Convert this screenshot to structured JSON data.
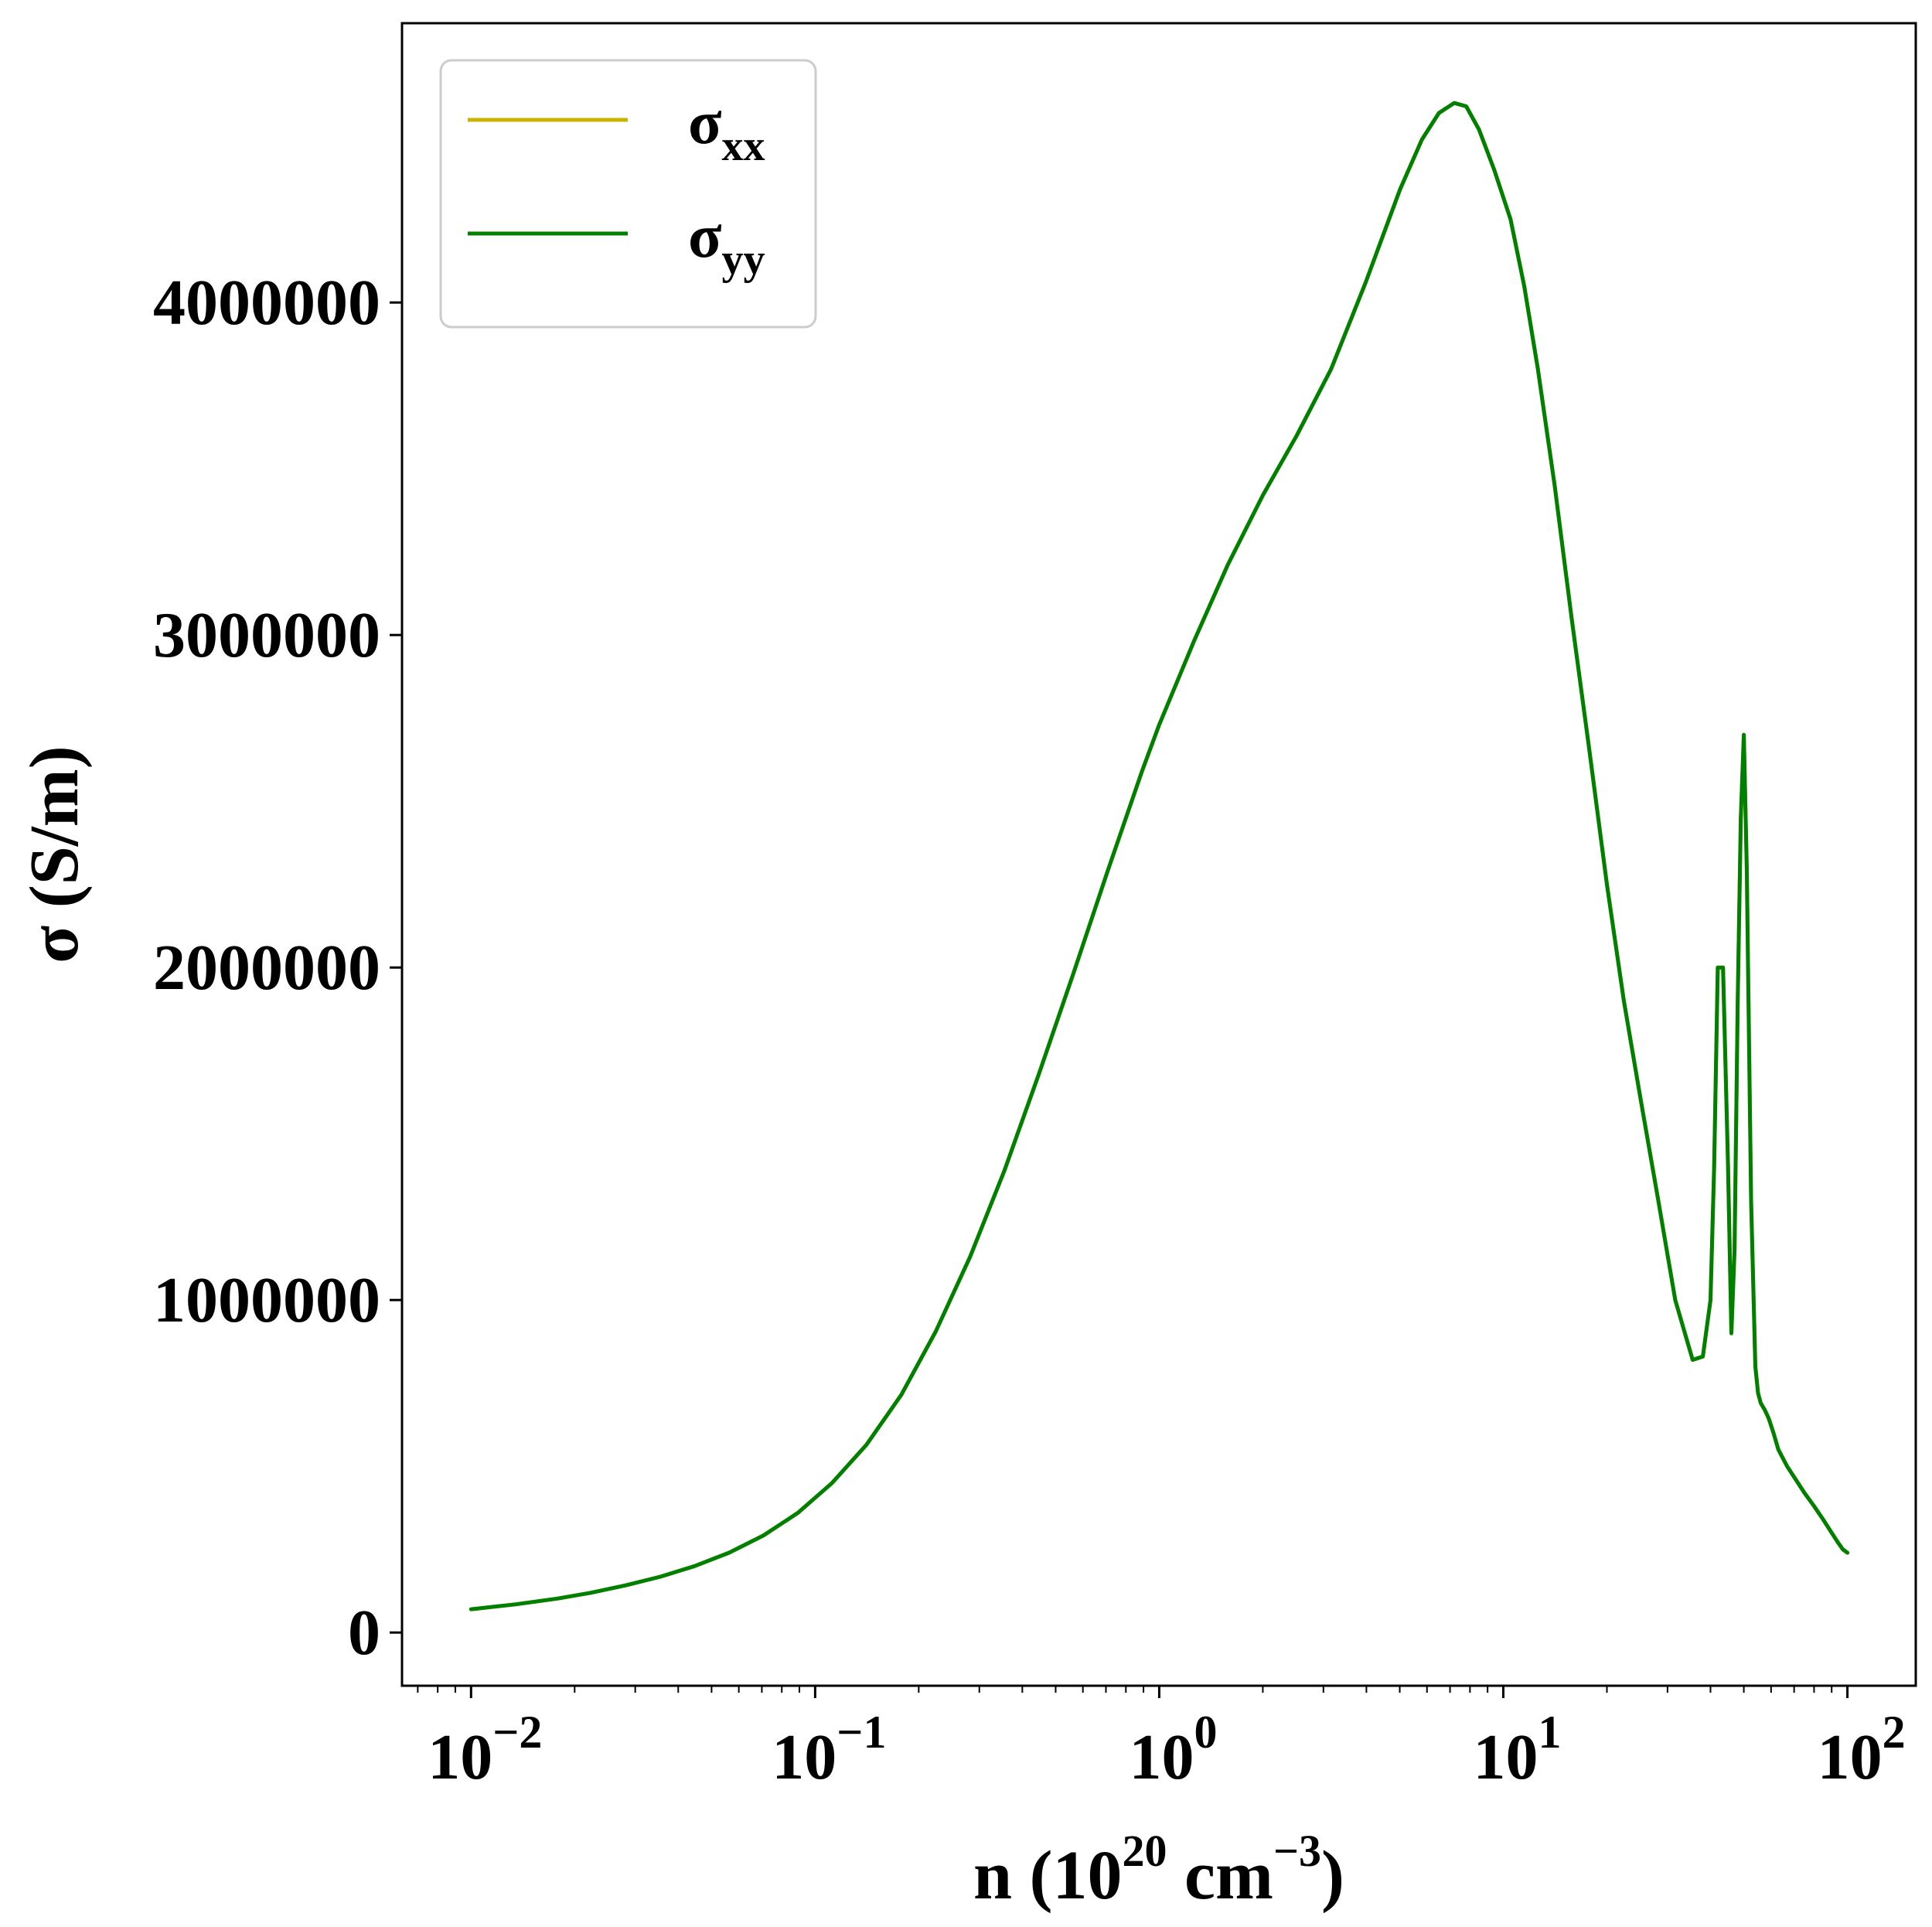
{
  "chart_data": {
    "type": "line",
    "xscale": "log",
    "xlim": [
      0.0063,
      158
    ],
    "ylim": [
      -160000,
      4840000
    ],
    "xlabel": {
      "base": "n (10",
      "exp1": "20",
      "mid": " cm",
      "exp2": "−3",
      "end": ")"
    },
    "ylabel": "σ (S/m)",
    "xticks": [
      {
        "value": 0.01,
        "base": "10",
        "exp": "−2"
      },
      {
        "value": 0.1,
        "base": "10",
        "exp": "−1"
      },
      {
        "value": 1,
        "base": "10",
        "exp": "0"
      },
      {
        "value": 10,
        "base": "10",
        "exp": "1"
      },
      {
        "value": 100,
        "base": "10",
        "exp": "2"
      }
    ],
    "yticks": [
      {
        "value": 0,
        "label": "0"
      },
      {
        "value": 1000000,
        "label": "1000000"
      },
      {
        "value": 2000000,
        "label": "2000000"
      },
      {
        "value": 3000000,
        "label": "3000000"
      },
      {
        "value": 4000000,
        "label": "4000000"
      }
    ],
    "legend": {
      "position": "top-left",
      "entries": [
        {
          "symbol": "σ",
          "sub": "xx",
          "color": "#c8b400"
        },
        {
          "symbol": "σ",
          "sub": "yy",
          "color": "#008000"
        }
      ]
    },
    "series": [
      {
        "name": "σxx",
        "color": "#c8b400",
        "x": [
          0.01,
          0.0135,
          0.0178,
          0.0224,
          0.0282,
          0.0355,
          0.0447,
          0.0562,
          0.0708,
          0.0891,
          0.112,
          0.141,
          0.178,
          0.224,
          0.282,
          0.355,
          0.447,
          0.562,
          0.708,
          0.891,
          1.0,
          1.26,
          1.58,
          2.0,
          2.51,
          3.16,
          3.98,
          5.01,
          5.8,
          6.5,
          7.2,
          7.8,
          8.5,
          9.4,
          10.5,
          11.5,
          12.6,
          14.1,
          15.8,
          17.8,
          20.0,
          22.4,
          25.1,
          28.2,
          31.6,
          35.5,
          38.0,
          40.0,
          41.0,
          42.0,
          43.5,
          45.0,
          46.0,
          47.0,
          48.0,
          49.0,
          50.0,
          51.0,
          52.5,
          54.0,
          55.0,
          56.0,
          57.5,
          59.0,
          61.0,
          63.0,
          66.8,
          70.8,
          75.0,
          80.0,
          85.0,
          90.0,
          94.0,
          97.0,
          100.0
        ],
        "y": [
          70000,
          85000,
          102000,
          120000,
          142000,
          168000,
          200000,
          240000,
          292000,
          360000,
          450000,
          565000,
          715000,
          905000,
          1130000,
          1390000,
          1680000,
          1980000,
          2290000,
          2590000,
          2730000,
          2980000,
          3210000,
          3420000,
          3600000,
          3800000,
          4060000,
          4340000,
          4490000,
          4570000,
          4600000,
          4590000,
          4520000,
          4400000,
          4250000,
          4050000,
          3800000,
          3450000,
          3050000,
          2650000,
          2250000,
          1900000,
          1600000,
          1300000,
          1000000,
          820000,
          830000,
          1000000,
          1400000,
          2000000,
          2000000,
          1400000,
          900000,
          1150000,
          1900000,
          2450000,
          2700000,
          2300000,
          1300000,
          800000,
          720000,
          690000,
          670000,
          645000,
          600000,
          550000,
          500000,
          460000,
          420000,
          380000,
          340000,
          300000,
          270000,
          250000,
          240000
        ]
      },
      {
        "name": "σyy",
        "color": "#008000",
        "x": [
          0.01,
          0.0135,
          0.0178,
          0.0224,
          0.0282,
          0.0355,
          0.0447,
          0.0562,
          0.0708,
          0.0891,
          0.112,
          0.141,
          0.178,
          0.224,
          0.282,
          0.355,
          0.447,
          0.562,
          0.708,
          0.891,
          1.0,
          1.26,
          1.58,
          2.0,
          2.51,
          3.16,
          3.98,
          5.01,
          5.8,
          6.5,
          7.2,
          7.8,
          8.5,
          9.4,
          10.5,
          11.5,
          12.6,
          14.1,
          15.8,
          17.8,
          20.0,
          22.4,
          25.1,
          28.2,
          31.6,
          35.5,
          38.0,
          40.0,
          41.0,
          42.0,
          43.5,
          45.0,
          46.0,
          47.0,
          48.0,
          49.0,
          50.0,
          51.0,
          52.5,
          54.0,
          55.0,
          56.0,
          57.5,
          59.0,
          61.0,
          63.0,
          66.8,
          70.8,
          75.0,
          80.0,
          85.0,
          90.0,
          94.0,
          97.0,
          100.0
        ],
        "y": [
          70000,
          85000,
          102000,
          120000,
          142000,
          168000,
          200000,
          240000,
          292000,
          360000,
          450000,
          565000,
          715000,
          905000,
          1130000,
          1390000,
          1680000,
          1980000,
          2290000,
          2590000,
          2730000,
          2980000,
          3210000,
          3420000,
          3600000,
          3800000,
          4060000,
          4340000,
          4490000,
          4570000,
          4600000,
          4590000,
          4520000,
          4400000,
          4250000,
          4050000,
          3800000,
          3450000,
          3050000,
          2650000,
          2250000,
          1900000,
          1600000,
          1300000,
          1000000,
          820000,
          830000,
          1000000,
          1400000,
          2000000,
          2000000,
          1400000,
          900000,
          1150000,
          1900000,
          2450000,
          2700000,
          2300000,
          1300000,
          800000,
          720000,
          690000,
          670000,
          645000,
          600000,
          550000,
          500000,
          460000,
          420000,
          380000,
          340000,
          300000,
          270000,
          250000,
          240000
        ]
      }
    ]
  }
}
